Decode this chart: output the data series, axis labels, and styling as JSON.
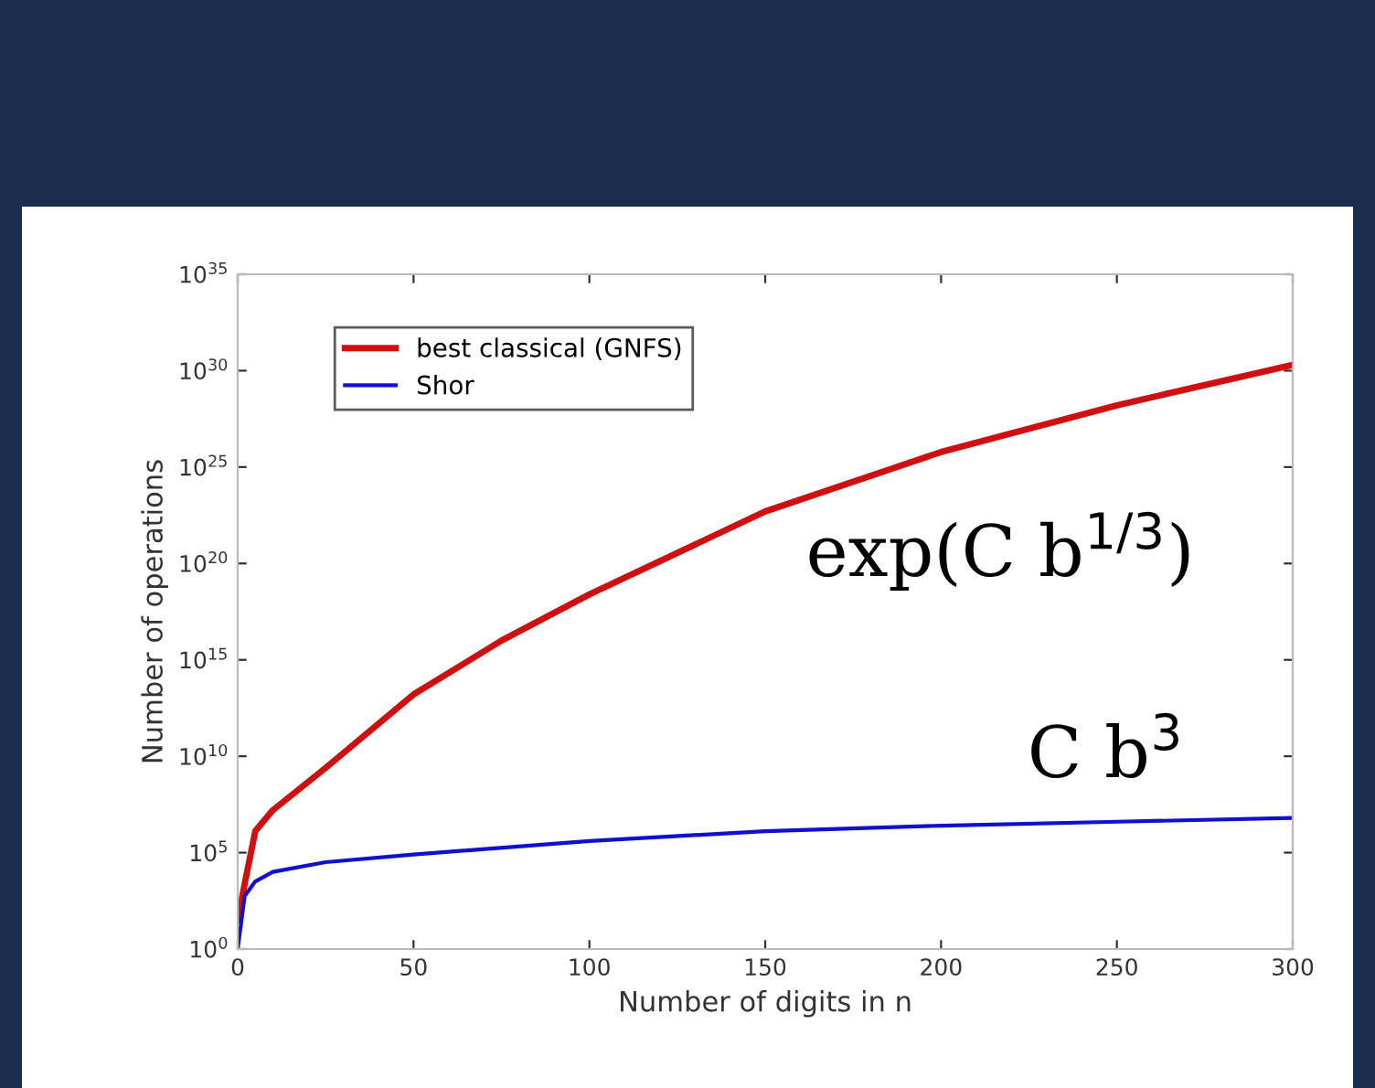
{
  "chart_data": {
    "type": "line",
    "xlabel": "Number of digits in n",
    "ylabel": "Number of operations",
    "log": "y",
    "legend": "top left",
    "grid": false,
    "xlim": [
      0,
      300
    ],
    "xticks": [
      0,
      50,
      100,
      150,
      200,
      250,
      300
    ],
    "ylim": [
      1,
      1e+35
    ],
    "yticks": [
      {
        "value": 1,
        "label": "10$^{0}$"
      },
      {
        "value": 100000.0,
        "label": "10$^{5}$"
      },
      {
        "value": 10000000000.0,
        "label": "10$^{10}$"
      },
      {
        "value": 1000000000000000.0,
        "label": "10$^{15}$"
      },
      {
        "value": 1e+20,
        "label": "10$^{20}$"
      },
      {
        "value": 1e+25,
        "label": "10$^{25}$"
      },
      {
        "value": 1e+30,
        "label": "10$^{30}$"
      },
      {
        "value": 1e+35,
        "label": "10$^{35}$"
      }
    ],
    "series": [
      {
        "name": "best classical (GNFS)",
        "color": "#d01010",
        "x": [
          0,
          2,
          5,
          10,
          25,
          50,
          75,
          100,
          150,
          200,
          250,
          300
        ],
        "values": [
          30.0,
          2500.0,
          1300000.0,
          16000000.0,
          2500000000.0,
          16000000000000.0,
          1e+16,
          2.5e+18,
          5e+22,
          6e+25,
          1.6e+28,
          2e+30
        ]
      },
      {
        "name": "Shor",
        "color": "#1010d0",
        "x": [
          0,
          2,
          5,
          10,
          25,
          50,
          100,
          150,
          200,
          250,
          300
        ],
        "values": [
          1,
          560,
          3200,
          10000.0,
          32000.0,
          80000.0,
          400000.0,
          1300000.0,
          2500000.0,
          4000000.0,
          6300000.0
        ]
      }
    ],
    "annotations": [
      "exp(C b$^{1/3}$)",
      "C b$^{3}$"
    ]
  }
}
